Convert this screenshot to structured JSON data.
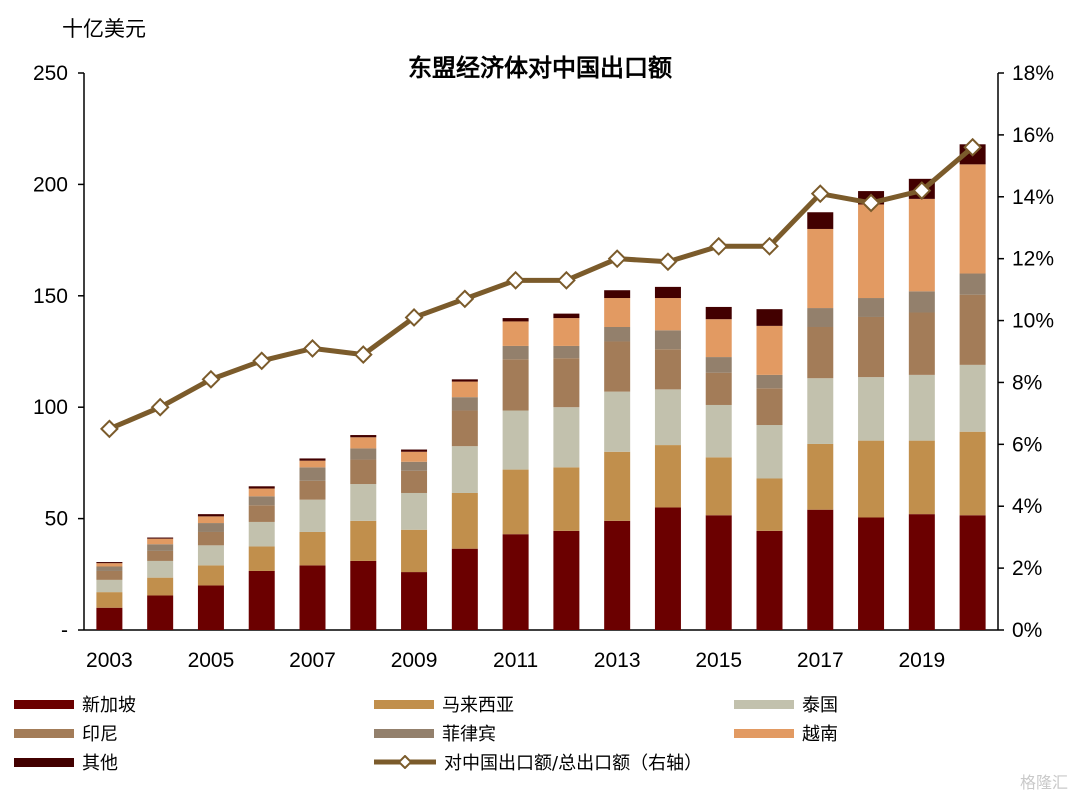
{
  "chart_data": {
    "type": "bar",
    "title": "东盟经济体对中国出口额",
    "ylabel": "十亿美元",
    "ylim": [
      0,
      250
    ],
    "y_ticks": [
      "-",
      "50",
      "100",
      "150",
      "200",
      "250"
    ],
    "y2lim": [
      0,
      18
    ],
    "y2_ticks": [
      "0%",
      "2%",
      "4%",
      "6%",
      "8%",
      "10%",
      "12%",
      "14%",
      "16%",
      "18%"
    ],
    "x_tick_labels": [
      "2003",
      "2005",
      "2007",
      "2009",
      "2011",
      "2013",
      "2015",
      "2017",
      "2019"
    ],
    "categories": [
      "2003",
      "2004",
      "2005",
      "2006",
      "2007",
      "2008",
      "2009",
      "2010",
      "2011",
      "2012",
      "2013",
      "2014",
      "2015",
      "2016",
      "2017",
      "2018",
      "2019",
      "2020"
    ],
    "stacked": true,
    "series": [
      {
        "name": "新加坡",
        "color": "#6b0000",
        "values": [
          10,
          15.5,
          20,
          26.5,
          29,
          31,
          26,
          36.5,
          43,
          44.5,
          49,
          55,
          51.5,
          44.5,
          54,
          50.5,
          52,
          51.5
        ]
      },
      {
        "name": "马来西亚",
        "color": "#c18f4c",
        "values": [
          7,
          8,
          9,
          11,
          15,
          18,
          19,
          25,
          29,
          28.5,
          31,
          28,
          26,
          23.5,
          29.5,
          34.5,
          33,
          37.5
        ]
      },
      {
        "name": "泰国",
        "color": "#c2c1ad",
        "values": [
          5.5,
          7.5,
          9,
          11,
          14.5,
          16.5,
          16.5,
          21,
          26.5,
          27,
          27,
          25,
          23.5,
          24,
          29.5,
          28.5,
          29.5,
          30
        ]
      },
      {
        "name": "印尼",
        "color": "#a37c58",
        "values": [
          4,
          4.5,
          6,
          7.5,
          8.5,
          11,
          10,
          16,
          23,
          22,
          22.5,
          18,
          14.5,
          16.5,
          23,
          27,
          28,
          31.5
        ]
      },
      {
        "name": "菲律宾",
        "color": "#93806c",
        "values": [
          2,
          3,
          4,
          4,
          6,
          5,
          4,
          6,
          6,
          5.5,
          6.5,
          8.5,
          7,
          6,
          8.5,
          8.5,
          9.5,
          9.5
        ]
      },
      {
        "name": "越南",
        "color": "#e29a62",
        "values": [
          1.5,
          2.5,
          3,
          3.5,
          3,
          5,
          4.5,
          7,
          11,
          12.5,
          13,
          14.5,
          17,
          22,
          35.5,
          42,
          41.5,
          49
        ]
      },
      {
        "name": "其他",
        "color": "#420000",
        "values": [
          0.5,
          0.5,
          1,
          1,
          1,
          1,
          1,
          1,
          1.5,
          2,
          3.5,
          5,
          5.5,
          7.5,
          7.5,
          6,
          9,
          9
        ]
      }
    ],
    "line": {
      "name": "对中国出口额/总出口额（右轴）",
      "color": "#7b5b2b",
      "axis": "right",
      "values": [
        6.5,
        7.2,
        8.1,
        8.7,
        9.1,
        8.9,
        10.1,
        10.7,
        11.3,
        11.3,
        12.0,
        11.9,
        12.4,
        12.4,
        14.1,
        13.8,
        14.2,
        15.6
      ]
    },
    "legend": [
      {
        "label": "新加坡",
        "color": "#6b0000",
        "kind": "bar"
      },
      {
        "label": "马来西亚",
        "color": "#c18f4c",
        "kind": "bar"
      },
      {
        "label": "泰国",
        "color": "#c2c1ad",
        "kind": "bar"
      },
      {
        "label": "印尼",
        "color": "#a37c58",
        "kind": "bar"
      },
      {
        "label": "菲律宾",
        "color": "#93806c",
        "kind": "bar"
      },
      {
        "label": "越南",
        "color": "#e29a62",
        "kind": "bar"
      },
      {
        "label": "其他",
        "color": "#420000",
        "kind": "bar"
      },
      {
        "label": "对中国出口额/总出口额（右轴）",
        "color": "#7b5b2b",
        "kind": "line"
      }
    ]
  },
  "watermark": "格隆汇"
}
